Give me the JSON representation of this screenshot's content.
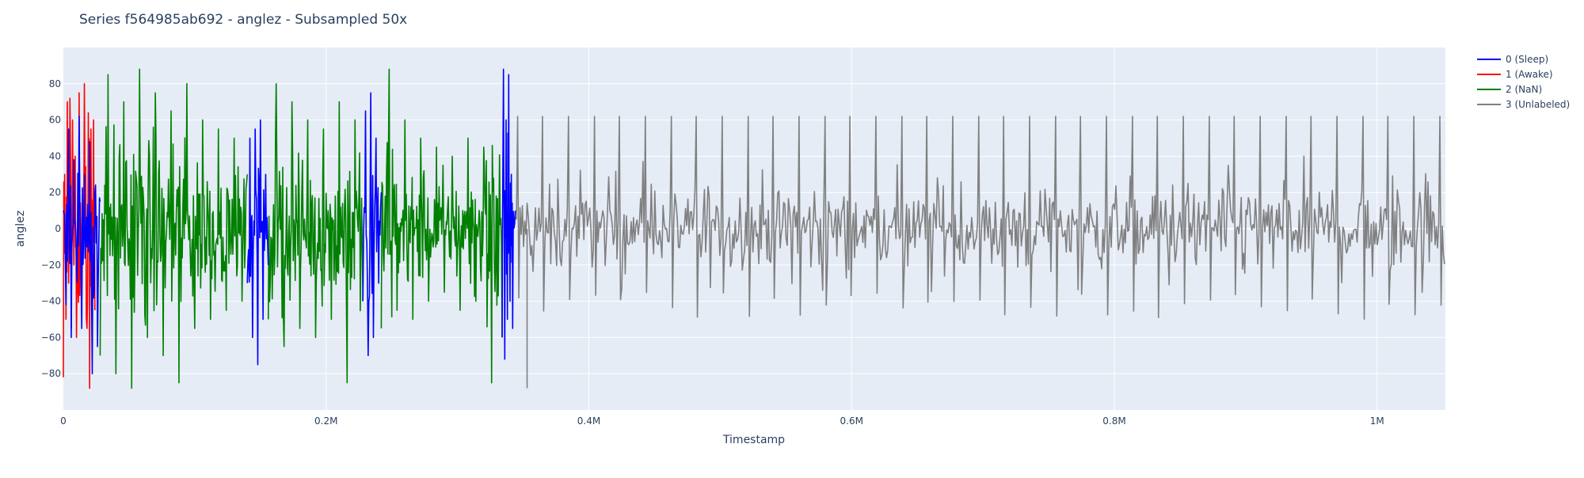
{
  "chart_data": {
    "type": "line",
    "title": "Series f564985ab692 - anglez - Subsampled 50x",
    "xlabel": "Timestamp",
    "ylabel": "anglez",
    "xlim": [
      0,
      1052000
    ],
    "ylim": [
      -100,
      100
    ],
    "x_ticks": [
      {
        "value": 0,
        "label": "0"
      },
      {
        "value": 200000,
        "label": "0.2M"
      },
      {
        "value": 400000,
        "label": "0.4M"
      },
      {
        "value": 600000,
        "label": "0.6M"
      },
      {
        "value": 800000,
        "label": "0.8M"
      },
      {
        "value": 1000000,
        "label": "1M"
      }
    ],
    "y_ticks": [
      {
        "value": 80,
        "label": "80"
      },
      {
        "value": 60,
        "label": "60"
      },
      {
        "value": 40,
        "label": "40"
      },
      {
        "value": 20,
        "label": "20"
      },
      {
        "value": 0,
        "label": "0"
      },
      {
        "value": -20,
        "label": "−20"
      },
      {
        "value": -40,
        "label": "−40"
      },
      {
        "value": -60,
        "label": "−60"
      },
      {
        "value": -80,
        "label": "−80"
      }
    ],
    "grid": true,
    "legend_position": "top-right, outside plot",
    "plot_background": "#e5ecf6",
    "series": [
      {
        "name": "0 (Sleep)",
        "color": "#0000ff",
        "segments": [
          {
            "x": [
              0,
              2000,
              4000,
              6000,
              8000,
              10000,
              12000,
              14000,
              16000,
              18000,
              20000,
              22000,
              24000,
              26000,
              28000
            ],
            "y": [
              10,
              -42,
              55,
              -60,
              38,
              -20,
              62,
              -55,
              30,
              -10,
              48,
              -80,
              20,
              -65,
              15
            ]
          },
          {
            "x": [
              140000,
              142000,
              144000,
              146000,
              148000,
              150000,
              152000,
              154000,
              156000
            ],
            "y": [
              -30,
              50,
              -60,
              55,
              -75,
              60,
              -50,
              30,
              -20
            ]
          },
          {
            "x": [
              228000,
              230000,
              232000,
              234000,
              236000,
              238000,
              240000,
              242000
            ],
            "y": [
              -40,
              65,
              -70,
              75,
              -60,
              50,
              -30,
              20
            ]
          },
          {
            "x": [
              334000,
              335000,
              336000,
              337000,
              338000,
              339000,
              340000,
              341000,
              342000,
              344000
            ],
            "y": [
              -60,
              88,
              -72,
              60,
              -50,
              85,
              -40,
              30,
              -55,
              10
            ]
          }
        ]
      },
      {
        "name": "1 (Awake)",
        "color": "#ff0000",
        "segments": [
          {
            "x": [
              0,
              1000,
              2000,
              3000,
              4000,
              5000,
              6000,
              7000,
              8000,
              9000,
              10000,
              12000,
              14000,
              16000,
              18000,
              19000,
              20000,
              21000,
              22000,
              23000,
              24000
            ],
            "y": [
              -82,
              30,
              -50,
              70,
              -30,
              72,
              -55,
              60,
              -20,
              40,
              -60,
              75,
              -40,
              80,
              -55,
              64,
              -88,
              55,
              -30,
              60,
              -45
            ]
          }
        ]
      },
      {
        "name": "2 (NaN)",
        "color": "#008000",
        "segments": [
          {
            "x": [
              28000,
              34000,
              40000,
              46000,
              52000,
              58000,
              64000,
              70000,
              76000,
              82000,
              88000,
              94000,
              100000,
              106000,
              112000,
              118000,
              124000,
              130000,
              136000,
              140000
            ],
            "y": [
              -70,
              85,
              -80,
              70,
              -88,
              88,
              -60,
              75,
              -70,
              65,
              -85,
              80,
              -55,
              60,
              -50,
              55,
              -45,
              50,
              -40,
              30
            ]
          },
          {
            "x": [
              156000,
              162000,
              168000,
              174000,
              180000,
              186000,
              192000,
              198000,
              204000,
              210000,
              216000,
              222000,
              228000
            ],
            "y": [
              -50,
              80,
              -65,
              70,
              -55,
              60,
              -60,
              55,
              -50,
              70,
              -85,
              60,
              -40
            ]
          },
          {
            "x": [
              242000,
              248000,
              254000,
              260000,
              266000,
              272000,
              278000,
              284000,
              290000,
              296000,
              302000,
              308000,
              314000,
              320000,
              326000,
              334000
            ],
            "y": [
              -55,
              88,
              -45,
              60,
              -50,
              50,
              -40,
              45,
              -35,
              40,
              -45,
              50,
              -40,
              45,
              -85,
              -60
            ]
          }
        ]
      },
      {
        "name": "3 (Unlabeled)",
        "color": "#808080",
        "segments": [
          {
            "x": [
              344000,
              1052000
            ],
            "y_min": -50,
            "y_max": 62,
            "y_typical": [
              -30,
              30
            ],
            "spike_period": 19500,
            "spike_positions_first": 345000,
            "spike_up": 62,
            "spike_down": -50,
            "min_value": -88
          }
        ]
      }
    ]
  }
}
